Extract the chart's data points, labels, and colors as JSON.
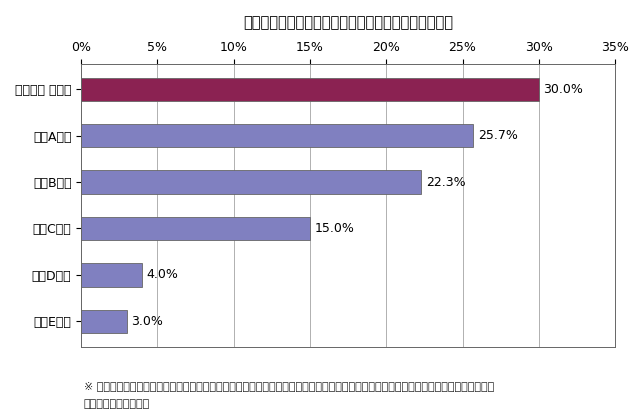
{
  "title": "「毎月穏立」をしてみたい商品・サービスランキング",
  "categories": [
    "いつかは ゆかし",
    "国内A証券",
    "国内B証券",
    "国内C証券",
    "国内D投信",
    "国内E投信"
  ],
  "values": [
    30.0,
    25.7,
    22.3,
    15.0,
    4.0,
    3.0
  ],
  "bar_colors": [
    "#8B2252",
    "#8080C0",
    "#8080C0",
    "#8080C0",
    "#8080C0",
    "#8080C0"
  ],
  "label_values": [
    "30.0%",
    "25.7%",
    "22.3%",
    "15.0%",
    "4.0%",
    "3.0%"
  ],
  "xlim": [
    0,
    35
  ],
  "xticks": [
    0,
    5,
    10,
    15,
    20,
    25,
    30,
    35
  ],
  "xtick_labels": [
    "0%",
    "5%",
    "10%",
    "15%",
    "20%",
    "25%",
    "30%",
    "35%"
  ],
  "footnote_line1": "※ アブラハム・プライベートバンク、国内投信２社（穏立型、直販型）、国内証券３社（総合証券１社、ネット証券大手２社）を対象と",
  "footnote_line2": "した（富士経済調べ）",
  "background_color": "#ffffff",
  "grid_color": "#b0b0b0",
  "title_fontsize": 10.5,
  "label_fontsize": 9,
  "tick_fontsize": 9,
  "footnote_fontsize": 8,
  "bar_height": 0.5
}
